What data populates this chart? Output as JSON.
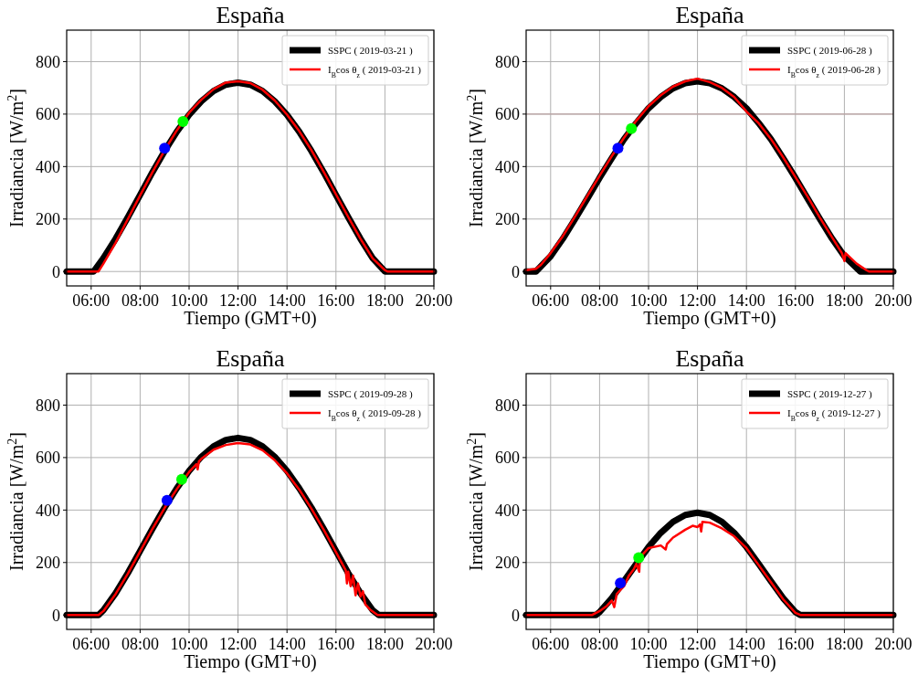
{
  "chart_data": [
    {
      "type": "line",
      "title": "España",
      "xlabel": "Tiempo (GMT+0)",
      "ylabel": "Irradiancia [W/m$^{2}$]",
      "xlim": [
        5,
        20
      ],
      "ylim": [
        -55,
        920
      ],
      "xticks": [
        {
          "value": 6,
          "label": "06:00"
        },
        {
          "value": 8,
          "label": "08:00"
        },
        {
          "value": 10,
          "label": "10:00"
        },
        {
          "value": 12,
          "label": "12:00"
        },
        {
          "value": 14,
          "label": "14:00"
        },
        {
          "value": 16,
          "label": "16:00"
        },
        {
          "value": 18,
          "label": "18:00"
        },
        {
          "value": 20,
          "label": "20:00"
        }
      ],
      "yticks": [
        0,
        200,
        400,
        600,
        800
      ],
      "grid": true,
      "legend": "top right",
      "series": [
        {
          "name": "SSPC ( 2019-03-21 )",
          "color": "#000000",
          "x": [
            5,
            6,
            6.1,
            6.5,
            7,
            7.5,
            8,
            8.5,
            9,
            9.5,
            10,
            10.5,
            11,
            11.5,
            12,
            12.5,
            13,
            13.5,
            14,
            14.5,
            15,
            15.5,
            16,
            16.5,
            17,
            17.5,
            18,
            20
          ],
          "values": [
            0,
            0,
            0,
            51,
            125,
            207,
            292,
            378,
            459,
            533,
            597,
            649,
            688,
            712,
            720,
            712,
            688,
            649,
            597,
            533,
            459,
            378,
            292,
            207,
            125,
            51,
            0,
            0
          ]
        },
        {
          "name": "I$_{B}$cos θ$_{z}$ ( 2019-03-21 )",
          "color": "#ff0000",
          "x": [
            5,
            6.3,
            6.5,
            7,
            7.5,
            8,
            8.5,
            9,
            9.5,
            10,
            10.5,
            11,
            11.5,
            12,
            12.5,
            13,
            13.5,
            14,
            14.5,
            15,
            15.5,
            16,
            16.5,
            17,
            17.5,
            18,
            18.1,
            20
          ],
          "values": [
            0,
            0,
            30,
            110,
            200,
            290,
            378,
            462,
            538,
            605,
            655,
            695,
            720,
            725,
            718,
            693,
            652,
            598,
            535,
            462,
            380,
            294,
            208,
            125,
            50,
            5,
            0,
            0
          ]
        },
        {
          "type": "scatter",
          "color": "#0000ff",
          "x": [
            9.0
          ],
          "values": [
            470
          ]
        },
        {
          "type": "scatter",
          "color": "#00ff00",
          "x": [
            9.75
          ],
          "values": [
            572
          ]
        }
      ]
    },
    {
      "type": "line",
      "title": "España",
      "xlabel": "Tiempo (GMT+0)",
      "ylabel": "Irradiancia [W/m$^{2}$]",
      "xlim": [
        5,
        20
      ],
      "ylim": [
        -55,
        920
      ],
      "xticks": [
        {
          "value": 6,
          "label": "06:00"
        },
        {
          "value": 8,
          "label": "08:00"
        },
        {
          "value": 10,
          "label": "10:00"
        },
        {
          "value": 12,
          "label": "12:00"
        },
        {
          "value": 14,
          "label": "14:00"
        },
        {
          "value": 16,
          "label": "16:00"
        },
        {
          "value": 18,
          "label": "18:00"
        },
        {
          "value": 20,
          "label": "20:00"
        }
      ],
      "yticks": [
        0,
        200,
        400,
        600,
        800
      ],
      "grid": true,
      "legend": "top right",
      "ref_lines": [
        {
          "axis": "y",
          "value": 600,
          "color": "#bca3a3"
        }
      ],
      "series": [
        {
          "name": "SSPC ( 2019-06-28 )",
          "color": "#000000",
          "x": [
            5,
            5.4,
            6,
            6.5,
            7,
            7.5,
            8,
            8.5,
            9,
            9.5,
            10,
            10.5,
            11,
            11.5,
            12,
            12.5,
            13,
            13.5,
            14,
            14.5,
            15,
            15.5,
            16,
            16.5,
            17,
            17.5,
            18,
            18.65,
            20
          ],
          "values": [
            0,
            0,
            58,
            125,
            200,
            278,
            357,
            432,
            504,
            566,
            622,
            665,
            698,
            718,
            725,
            718,
            698,
            665,
            622,
            566,
            504,
            432,
            357,
            278,
            200,
            125,
            58,
            0,
            0
          ]
        },
        {
          "name": "I$_{B}$cos θ$_{z}$ ( 2019-06-28 )",
          "color": "#ff0000",
          "x": [
            5,
            5.4,
            5.6,
            6,
            6.5,
            7,
            7.5,
            8,
            8.5,
            9,
            9.5,
            10,
            10.5,
            11,
            11.5,
            12,
            12.5,
            13,
            13.5,
            14,
            14.5,
            15,
            15.5,
            16,
            16.5,
            17,
            17.5,
            17.9,
            18,
            18.05,
            18.5,
            18.9,
            19,
            20
          ],
          "values": [
            5,
            10,
            25,
            70,
            135,
            210,
            288,
            365,
            440,
            510,
            575,
            630,
            672,
            705,
            725,
            735,
            722,
            700,
            665,
            610,
            565,
            505,
            435,
            360,
            285,
            205,
            130,
            70,
            40,
            70,
            30,
            5,
            0,
            0
          ]
        },
        {
          "type": "scatter",
          "color": "#0000ff",
          "x": [
            8.75
          ],
          "values": [
            470
          ]
        },
        {
          "type": "scatter",
          "color": "#00ff00",
          "x": [
            9.3
          ],
          "values": [
            545
          ]
        }
      ]
    },
    {
      "type": "line",
      "title": "España",
      "xlabel": "Tiempo (GMT+0)",
      "ylabel": "Irradiancia [W/m$^{2}$]",
      "xlim": [
        5,
        20
      ],
      "ylim": [
        -55,
        920
      ],
      "xticks": [
        {
          "value": 6,
          "label": "06:00"
        },
        {
          "value": 8,
          "label": "08:00"
        },
        {
          "value": 10,
          "label": "10:00"
        },
        {
          "value": 12,
          "label": "12:00"
        },
        {
          "value": 14,
          "label": "14:00"
        },
        {
          "value": 16,
          "label": "16:00"
        },
        {
          "value": 18,
          "label": "18:00"
        },
        {
          "value": 20,
          "label": "20:00"
        }
      ],
      "yticks": [
        0,
        200,
        400,
        600,
        800
      ],
      "grid": true,
      "legend": "top right",
      "series": [
        {
          "name": "SSPC ( 2019-09-28 )",
          "color": "#000000",
          "x": [
            5,
            6.3,
            6.5,
            7,
            7.5,
            8,
            8.5,
            9,
            9.5,
            10,
            10.5,
            11,
            11.5,
            12,
            12.5,
            13,
            13.5,
            14,
            14.5,
            15,
            15.5,
            16,
            16.5,
            17,
            17.5,
            17.75,
            20
          ],
          "values": [
            0,
            0,
            18,
            83,
            160,
            244,
            328,
            409,
            483,
            549,
            603,
            643,
            667,
            675,
            667,
            643,
            603,
            549,
            483,
            409,
            328,
            244,
            160,
            83,
            18,
            0,
            0
          ]
        },
        {
          "name": "I$_{B}$cos θ$_{z}$ ( 2019-09-28 )",
          "color": "#ff0000",
          "x": [
            5,
            6.3,
            6.5,
            7,
            7.5,
            8,
            8.5,
            9,
            9.5,
            10,
            10.3,
            10.35,
            10.4,
            10.5,
            11,
            11.5,
            12,
            12.5,
            13,
            13.5,
            14,
            14.5,
            15,
            15.5,
            16,
            16.4,
            16.45,
            16.5,
            16.6,
            16.7,
            16.8,
            16.9,
            17,
            17.1,
            17.2,
            17.4,
            17.7,
            20
          ],
          "values": [
            0,
            0,
            15,
            80,
            158,
            242,
            328,
            408,
            480,
            545,
            575,
            555,
            585,
            595,
            630,
            648,
            655,
            650,
            628,
            590,
            540,
            478,
            405,
            325,
            240,
            170,
            120,
            165,
            110,
            150,
            75,
            120,
            70,
            90,
            40,
            20,
            0,
            0
          ]
        },
        {
          "type": "scatter",
          "color": "#0000ff",
          "x": [
            9.1
          ],
          "values": [
            437
          ]
        },
        {
          "type": "scatter",
          "color": "#00ff00",
          "x": [
            9.7
          ],
          "values": [
            517
          ]
        }
      ]
    },
    {
      "type": "line",
      "title": "España",
      "xlabel": "Tiempo (GMT+0)",
      "ylabel": "Irradiancia [W/m$^{2}$]",
      "xlim": [
        5,
        20
      ],
      "ylim": [
        -55,
        920
      ],
      "xticks": [
        {
          "value": 6,
          "label": "06:00"
        },
        {
          "value": 8,
          "label": "08:00"
        },
        {
          "value": 10,
          "label": "10:00"
        },
        {
          "value": 12,
          "label": "12:00"
        },
        {
          "value": 14,
          "label": "14:00"
        },
        {
          "value": 16,
          "label": "16:00"
        },
        {
          "value": 18,
          "label": "18:00"
        },
        {
          "value": 20,
          "label": "20:00"
        }
      ],
      "yticks": [
        0,
        200,
        400,
        600,
        800
      ],
      "grid": true,
      "legend": "top right",
      "series": [
        {
          "name": "SSPC ( 2019-12-27 )",
          "color": "#000000",
          "x": [
            5,
            7.85,
            8,
            8.5,
            9,
            9.5,
            10,
            10.5,
            11,
            11.5,
            12,
            12.5,
            13,
            13.5,
            14,
            14.5,
            15,
            15.5,
            16,
            16.2,
            20
          ],
          "values": [
            0,
            0,
            11,
            64,
            129,
            195,
            259,
            313,
            355,
            381,
            390,
            381,
            355,
            313,
            259,
            195,
            129,
            64,
            11,
            0,
            0
          ]
        },
        {
          "name": "I$_{B}$cos θ$_{z}$ ( 2019-12-27 )",
          "color": "#ff0000",
          "x": [
            5,
            7.7,
            8,
            8.3,
            8.5,
            8.6,
            8.7,
            9,
            9.2,
            9.4,
            9.5,
            9.62,
            9.65,
            10,
            10.5,
            10.7,
            10.75,
            11,
            11.5,
            11.8,
            12,
            12.1,
            12.15,
            12.2,
            12.5,
            13,
            13.5,
            14,
            14.5,
            15,
            15.5,
            16,
            16.2,
            20
          ],
          "values": [
            0,
            0,
            15,
            35,
            55,
            30,
            80,
            110,
            150,
            175,
            195,
            165,
            220,
            255,
            265,
            250,
            270,
            295,
            325,
            340,
            335,
            345,
            318,
            355,
            352,
            330,
            300,
            255,
            190,
            125,
            60,
            8,
            0,
            0
          ]
        },
        {
          "type": "scatter",
          "color": "#0000ff",
          "x": [
            8.85
          ],
          "values": [
            122
          ]
        },
        {
          "type": "scatter",
          "color": "#00ff00",
          "x": [
            9.6
          ],
          "values": [
            218
          ]
        }
      ]
    }
  ]
}
